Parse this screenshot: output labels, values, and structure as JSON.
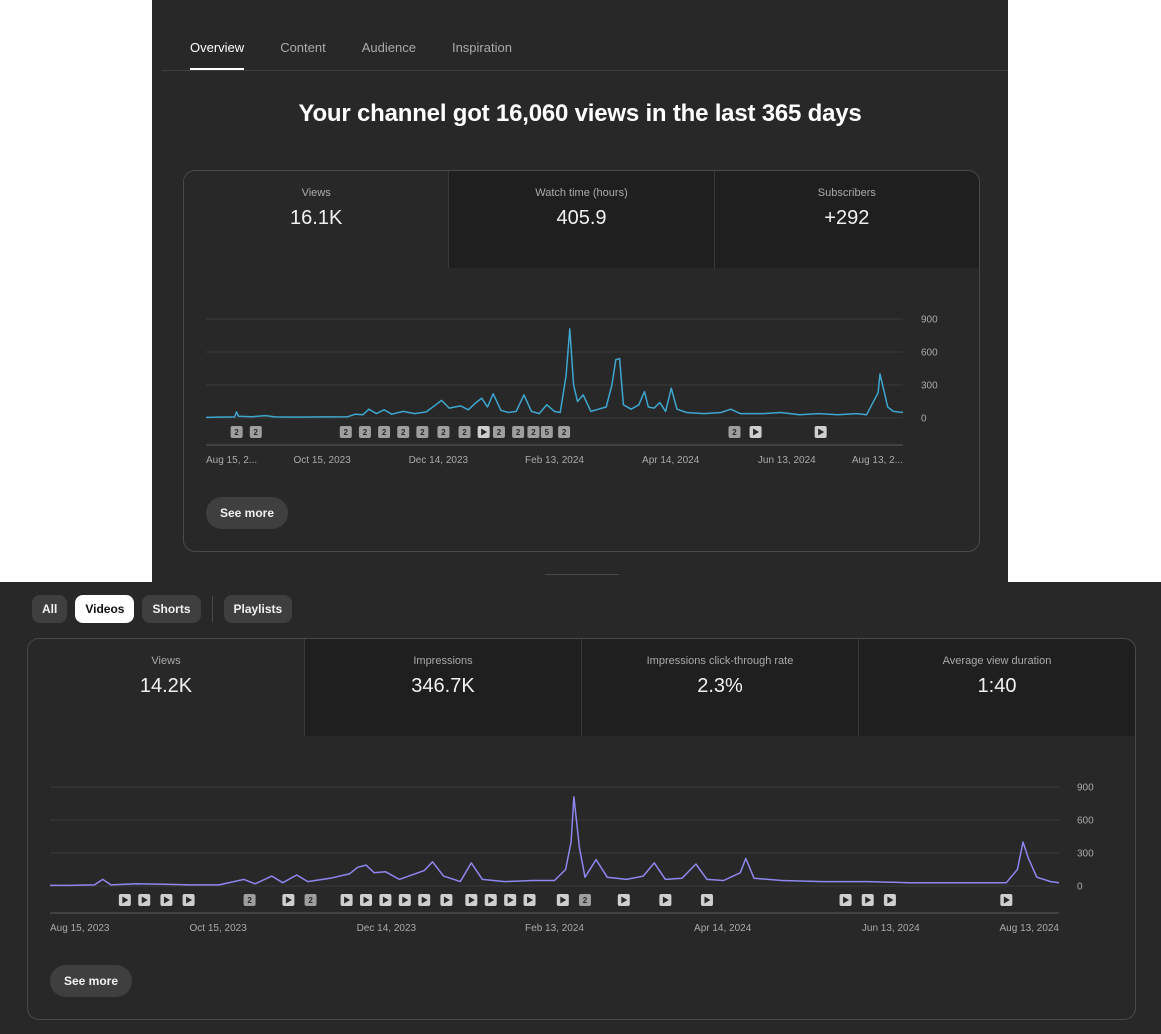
{
  "overview": {
    "tabs": [
      {
        "label": "Overview",
        "active": true
      },
      {
        "label": "Content",
        "active": false
      },
      {
        "label": "Audience",
        "active": false
      },
      {
        "label": "Inspiration",
        "active": false
      }
    ],
    "headline": "Your channel got 16,060 views in the last 365 days",
    "metrics": [
      {
        "label": "Views",
        "value": "16.1K",
        "active": true
      },
      {
        "label": "Watch time (hours)",
        "value": "405.9",
        "active": false
      },
      {
        "label": "Subscribers",
        "value": "+292",
        "active": false
      }
    ],
    "see_more": "See more"
  },
  "content": {
    "chips": [
      {
        "label": "All",
        "active": false
      },
      {
        "label": "Videos",
        "active": true
      },
      {
        "label": "Shorts",
        "active": false
      },
      {
        "label": "Playlists",
        "active": false
      }
    ],
    "metrics": [
      {
        "label": "Views",
        "value": "14.2K",
        "active": true
      },
      {
        "label": "Impressions",
        "value": "346.7K",
        "active": false
      },
      {
        "label": "Impressions click-through rate",
        "value": "2.3%",
        "active": false
      },
      {
        "label": "Average view duration",
        "value": "1:40",
        "active": false
      }
    ],
    "see_more": "See more"
  },
  "chart_data": [
    {
      "type": "line",
      "color": "#3ea6cf",
      "ylim": [
        0,
        900
      ],
      "yticks": [
        "900",
        "600",
        "300",
        "0"
      ],
      "xticks": [
        "Aug 15, 2...",
        "Oct 15, 2023",
        "Dec 14, 2023",
        "Feb 13, 2024",
        "Apr 14, 2024",
        "Jun 13, 2024",
        "Aug 13, 2..."
      ],
      "x_range": [
        "2023-08-15",
        "2024-08-13"
      ],
      "points": [
        [
          "2023-08-15",
          5
        ],
        [
          "2023-08-22",
          8
        ],
        [
          "2023-08-30",
          10
        ],
        [
          "2023-08-31",
          55
        ],
        [
          "2023-09-01",
          15
        ],
        [
          "2023-09-08",
          12
        ],
        [
          "2023-09-15",
          22
        ],
        [
          "2023-09-20",
          10
        ],
        [
          "2023-10-01",
          8
        ],
        [
          "2023-10-15",
          10
        ],
        [
          "2023-10-28",
          12
        ],
        [
          "2023-11-01",
          35
        ],
        [
          "2023-11-05",
          30
        ],
        [
          "2023-11-08",
          80
        ],
        [
          "2023-11-12",
          40
        ],
        [
          "2023-11-16",
          75
        ],
        [
          "2023-11-20",
          35
        ],
        [
          "2023-11-26",
          60
        ],
        [
          "2023-12-02",
          40
        ],
        [
          "2023-12-08",
          55
        ],
        [
          "2023-12-13",
          120
        ],
        [
          "2023-12-16",
          160
        ],
        [
          "2023-12-20",
          90
        ],
        [
          "2023-12-26",
          110
        ],
        [
          "2023-12-30",
          75
        ],
        [
          "2024-01-03",
          140
        ],
        [
          "2024-01-06",
          180
        ],
        [
          "2024-01-09",
          100
        ],
        [
          "2024-01-12",
          220
        ],
        [
          "2024-01-16",
          70
        ],
        [
          "2024-01-20",
          50
        ],
        [
          "2024-01-24",
          60
        ],
        [
          "2024-01-28",
          210
        ],
        [
          "2024-02-01",
          60
        ],
        [
          "2024-02-05",
          40
        ],
        [
          "2024-02-09",
          120
        ],
        [
          "2024-02-13",
          60
        ],
        [
          "2024-02-16",
          50
        ],
        [
          "2024-02-19",
          380
        ],
        [
          "2024-02-21",
          810
        ],
        [
          "2024-02-23",
          300
        ],
        [
          "2024-02-25",
          150
        ],
        [
          "2024-02-28",
          210
        ],
        [
          "2024-03-03",
          60
        ],
        [
          "2024-03-07",
          80
        ],
        [
          "2024-03-11",
          100
        ],
        [
          "2024-03-14",
          300
        ],
        [
          "2024-03-16",
          530
        ],
        [
          "2024-03-18",
          540
        ],
        [
          "2024-03-20",
          120
        ],
        [
          "2024-03-24",
          80
        ],
        [
          "2024-03-28",
          120
        ],
        [
          "2024-03-31",
          240
        ],
        [
          "2024-04-02",
          100
        ],
        [
          "2024-04-05",
          90
        ],
        [
          "2024-04-08",
          140
        ],
        [
          "2024-04-11",
          60
        ],
        [
          "2024-04-14",
          270
        ],
        [
          "2024-04-17",
          80
        ],
        [
          "2024-04-22",
          50
        ],
        [
          "2024-05-01",
          40
        ],
        [
          "2024-05-10",
          50
        ],
        [
          "2024-05-15",
          80
        ],
        [
          "2024-05-20",
          40
        ],
        [
          "2024-06-01",
          40
        ],
        [
          "2024-06-10",
          50
        ],
        [
          "2024-06-20",
          30
        ],
        [
          "2024-06-30",
          40
        ],
        [
          "2024-07-10",
          30
        ],
        [
          "2024-07-20",
          40
        ],
        [
          "2024-07-25",
          30
        ],
        [
          "2024-07-31",
          230
        ],
        [
          "2024-08-01",
          400
        ],
        [
          "2024-08-03",
          250
        ],
        [
          "2024-08-05",
          100
        ],
        [
          "2024-08-08",
          60
        ],
        [
          "2024-08-13",
          50
        ]
      ],
      "markers": [
        {
          "date": "2023-08-31",
          "label": "2"
        },
        {
          "date": "2023-09-10",
          "label": "2"
        },
        {
          "date": "2023-10-27",
          "label": "2"
        },
        {
          "date": "2023-11-06",
          "label": "2"
        },
        {
          "date": "2023-11-16",
          "label": "2"
        },
        {
          "date": "2023-11-26",
          "label": "2"
        },
        {
          "date": "2023-12-06",
          "label": "2"
        },
        {
          "date": "2023-12-17",
          "label": "2"
        },
        {
          "date": "2023-12-28",
          "label": "2"
        },
        {
          "date": "2024-01-07",
          "label": "play"
        },
        {
          "date": "2024-01-15",
          "label": "2"
        },
        {
          "date": "2024-01-25",
          "label": "2"
        },
        {
          "date": "2024-02-02",
          "label": "2"
        },
        {
          "date": "2024-02-09",
          "label": "5"
        },
        {
          "date": "2024-02-18",
          "label": "2"
        },
        {
          "date": "2024-05-17",
          "label": "2"
        },
        {
          "date": "2024-05-28",
          "label": "play"
        },
        {
          "date": "2024-07-01",
          "label": "play"
        }
      ]
    },
    {
      "type": "line",
      "color": "#8f86f0",
      "ylim": [
        0,
        900
      ],
      "yticks": [
        "900",
        "600",
        "300",
        "0"
      ],
      "xticks": [
        "Aug 15, 2023",
        "Oct 15, 2023",
        "Dec 14, 2023",
        "Feb 13, 2024",
        "Apr 14, 2024",
        "Jun 13, 2024",
        "Aug 13, 2024"
      ],
      "x_range": [
        "2023-08-15",
        "2024-08-13"
      ],
      "points": [
        [
          "2023-08-15",
          5
        ],
        [
          "2023-08-22",
          5
        ],
        [
          "2023-08-31",
          10
        ],
        [
          "2023-09-03",
          60
        ],
        [
          "2023-09-06",
          10
        ],
        [
          "2023-09-15",
          20
        ],
        [
          "2023-09-25",
          15
        ],
        [
          "2023-10-05",
          10
        ],
        [
          "2023-10-15",
          10
        ],
        [
          "2023-10-24",
          60
        ],
        [
          "2023-10-28",
          20
        ],
        [
          "2023-11-03",
          90
        ],
        [
          "2023-11-07",
          30
        ],
        [
          "2023-11-12",
          100
        ],
        [
          "2023-11-16",
          40
        ],
        [
          "2023-11-24",
          70
        ],
        [
          "2023-12-01",
          110
        ],
        [
          "2023-12-04",
          170
        ],
        [
          "2023-12-07",
          190
        ],
        [
          "2023-12-10",
          120
        ],
        [
          "2023-12-14",
          130
        ],
        [
          "2023-12-19",
          60
        ],
        [
          "2023-12-28",
          140
        ],
        [
          "2023-12-31",
          220
        ],
        [
          "2024-01-04",
          90
        ],
        [
          "2024-01-10",
          40
        ],
        [
          "2024-01-14",
          210
        ],
        [
          "2024-01-18",
          60
        ],
        [
          "2024-01-26",
          40
        ],
        [
          "2024-02-05",
          50
        ],
        [
          "2024-02-13",
          50
        ],
        [
          "2024-02-17",
          150
        ],
        [
          "2024-02-19",
          400
        ],
        [
          "2024-02-20",
          810
        ],
        [
          "2024-02-22",
          350
        ],
        [
          "2024-02-24",
          80
        ],
        [
          "2024-02-28",
          240
        ],
        [
          "2024-03-03",
          80
        ],
        [
          "2024-03-10",
          60
        ],
        [
          "2024-03-16",
          90
        ],
        [
          "2024-03-20",
          210
        ],
        [
          "2024-03-24",
          60
        ],
        [
          "2024-03-30",
          70
        ],
        [
          "2024-04-04",
          200
        ],
        [
          "2024-04-08",
          60
        ],
        [
          "2024-04-14",
          50
        ],
        [
          "2024-04-20",
          120
        ],
        [
          "2024-04-22",
          250
        ],
        [
          "2024-04-25",
          70
        ],
        [
          "2024-05-05",
          50
        ],
        [
          "2024-05-20",
          40
        ],
        [
          "2024-06-05",
          40
        ],
        [
          "2024-06-20",
          30
        ],
        [
          "2024-07-05",
          30
        ],
        [
          "2024-07-25",
          30
        ],
        [
          "2024-07-29",
          150
        ],
        [
          "2024-07-31",
          400
        ],
        [
          "2024-08-02",
          250
        ],
        [
          "2024-08-05",
          80
        ],
        [
          "2024-08-10",
          40
        ],
        [
          "2024-08-13",
          30
        ]
      ],
      "markers": [
        {
          "date": "2023-09-11",
          "label": "play"
        },
        {
          "date": "2023-09-18",
          "label": "play"
        },
        {
          "date": "2023-09-26",
          "label": "play"
        },
        {
          "date": "2023-10-04",
          "label": "play"
        },
        {
          "date": "2023-10-26",
          "label": "2"
        },
        {
          "date": "2023-11-09",
          "label": "play"
        },
        {
          "date": "2023-11-17",
          "label": "2"
        },
        {
          "date": "2023-11-30",
          "label": "play"
        },
        {
          "date": "2023-12-07",
          "label": "play"
        },
        {
          "date": "2023-12-14",
          "label": "play"
        },
        {
          "date": "2023-12-21",
          "label": "play"
        },
        {
          "date": "2023-12-28",
          "label": "play"
        },
        {
          "date": "2024-01-05",
          "label": "play"
        },
        {
          "date": "2024-01-14",
          "label": "play"
        },
        {
          "date": "2024-01-21",
          "label": "play"
        },
        {
          "date": "2024-01-28",
          "label": "play"
        },
        {
          "date": "2024-02-04",
          "label": "play"
        },
        {
          "date": "2024-02-16",
          "label": "play"
        },
        {
          "date": "2024-02-24",
          "label": "2"
        },
        {
          "date": "2024-03-09",
          "label": "play"
        },
        {
          "date": "2024-03-24",
          "label": "play"
        },
        {
          "date": "2024-04-08",
          "label": "play"
        },
        {
          "date": "2024-05-28",
          "label": "play"
        },
        {
          "date": "2024-06-05",
          "label": "play"
        },
        {
          "date": "2024-06-13",
          "label": "play"
        },
        {
          "date": "2024-07-25",
          "label": "play"
        }
      ]
    }
  ]
}
